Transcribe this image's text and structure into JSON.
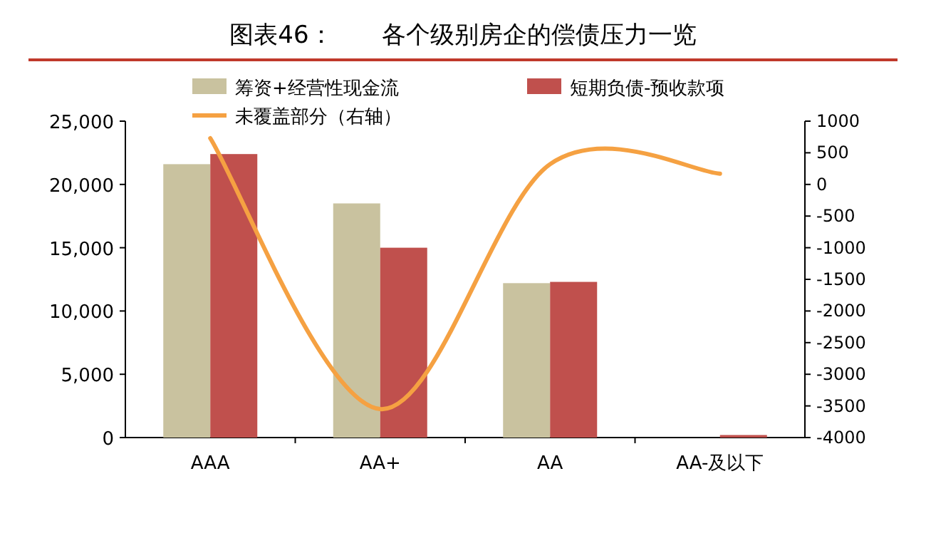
{
  "chart_data": {
    "type": "bar",
    "title": "图表46：　　各个级别房企的偿债压力一览",
    "categories": [
      "AAA",
      "AA+",
      "AA",
      "AA-及以下"
    ],
    "series": [
      {
        "name": "筹资+经营性现金流",
        "color": "#c9c29f",
        "values": [
          21600,
          18500,
          12200,
          0
        ]
      },
      {
        "name": "短期负债-预收款项",
        "color": "#c0504d",
        "values": [
          22400,
          15000,
          12300,
          200
        ]
      },
      {
        "name": "未覆盖部分（右轴）",
        "color": "#f5a142",
        "type": "line",
        "axis": "y2",
        "values": [
          730,
          -3550,
          320,
          170
        ]
      }
    ],
    "ylim": [
      0,
      25000
    ],
    "yticks": [
      0,
      {
        "value": 5000,
        "label": "5,000"
      },
      {
        "value": 10000,
        "label": "10,000"
      },
      {
        "value": 15000,
        "label": "15,000"
      },
      {
        "value": 20000,
        "label": "20,000"
      },
      {
        "value": 25000,
        "label": "25,000"
      }
    ],
    "y2lim": [
      -4000,
      1000
    ],
    "y2ticks": [
      -4000,
      -3500,
      -3000,
      -2500,
      -2000,
      -1500,
      -1000,
      -500,
      0,
      500,
      1000
    ],
    "legend": "top",
    "grid": false
  }
}
